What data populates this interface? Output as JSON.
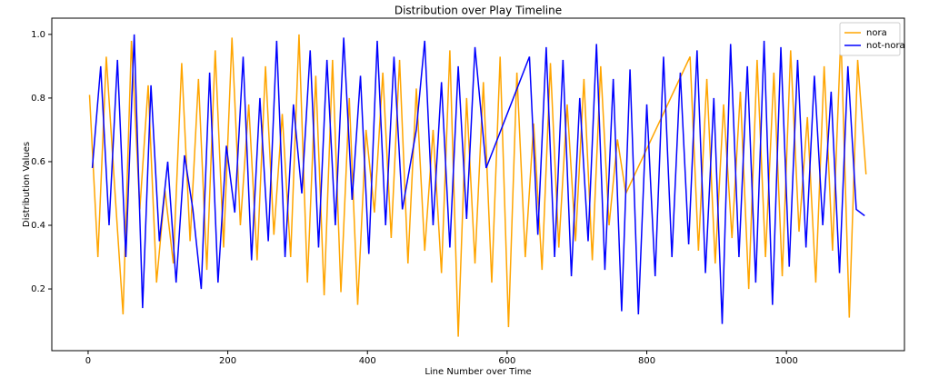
{
  "chart_data": {
    "type": "line",
    "title": "Distribution over Play Timeline",
    "x_label": "Line Number over Time",
    "y_label": "Distribution Values",
    "xlim": [
      -52,
      1169
    ],
    "ylim": [
      0.006,
      1.051
    ],
    "xticks": [
      0,
      200,
      400,
      600,
      800,
      1000
    ],
    "yticks": [
      0.2,
      0.4,
      0.6,
      0.8,
      {
        "value": 1,
        "label": "1.0"
      }
    ],
    "legend": "upper right",
    "series": [
      {
        "name": "nora",
        "color": "#ffa500",
        "x": [
          2,
          14,
          26,
          38,
          50,
          62,
          74,
          86,
          98,
          110,
          122,
          134,
          146,
          158,
          170,
          182,
          194,
          206,
          218,
          230,
          242,
          254,
          266,
          278,
          290,
          302,
          314,
          326,
          338,
          350,
          362,
          374,
          386,
          398,
          410,
          422,
          434,
          446,
          458,
          470,
          482,
          494,
          506,
          518,
          530,
          542,
          554,
          566,
          578,
          590,
          602,
          614,
          626,
          638,
          650,
          662,
          674,
          686,
          698,
          710,
          722,
          734,
          746,
          758,
          770,
          862,
          874,
          886,
          898,
          910,
          922,
          934,
          946,
          958,
          970,
          982,
          994,
          1006,
          1018,
          1030,
          1042,
          1054,
          1066,
          1078,
          1090,
          1102,
          1114
        ],
        "values": [
          0.81,
          0.3,
          0.93,
          0.52,
          0.12,
          0.98,
          0.45,
          0.84,
          0.22,
          0.51,
          0.28,
          0.91,
          0.35,
          0.86,
          0.26,
          0.95,
          0.33,
          0.99,
          0.4,
          0.78,
          0.29,
          0.9,
          0.37,
          0.75,
          0.3,
          1.0,
          0.22,
          0.87,
          0.18,
          0.92,
          0.19,
          0.8,
          0.15,
          0.7,
          0.44,
          0.88,
          0.36,
          0.92,
          0.28,
          0.83,
          0.32,
          0.7,
          0.25,
          0.95,
          0.05,
          0.8,
          0.28,
          0.85,
          0.22,
          0.93,
          0.08,
          0.88,
          0.3,
          0.72,
          0.26,
          0.91,
          0.33,
          0.78,
          0.35,
          0.86,
          0.29,
          0.9,
          0.4,
          0.67,
          0.5,
          0.93,
          0.32,
          0.86,
          0.28,
          0.78,
          0.36,
          0.82,
          0.2,
          0.92,
          0.3,
          0.88,
          0.24,
          0.95,
          0.38,
          0.74,
          0.22,
          0.9,
          0.32,
          1.0,
          0.11,
          0.92,
          0.56
        ]
      },
      {
        "name": "not-nora",
        "color": "#0000ff",
        "x": [
          6,
          18,
          30,
          42,
          54,
          66,
          78,
          90,
          102,
          114,
          126,
          138,
          150,
          162,
          174,
          186,
          198,
          210,
          222,
          234,
          246,
          258,
          270,
          282,
          294,
          306,
          318,
          330,
          342,
          354,
          366,
          378,
          390,
          402,
          414,
          426,
          438,
          450,
          470,
          482,
          494,
          506,
          518,
          530,
          542,
          554,
          570,
          632,
          644,
          656,
          668,
          680,
          692,
          704,
          716,
          728,
          740,
          752,
          764,
          776,
          788,
          800,
          812,
          824,
          836,
          848,
          860,
          872,
          884,
          896,
          908,
          920,
          932,
          944,
          956,
          968,
          980,
          992,
          1004,
          1016,
          1028,
          1040,
          1052,
          1064,
          1076,
          1088,
          1100,
          1112
        ],
        "values": [
          0.58,
          0.9,
          0.4,
          0.92,
          0.3,
          1.0,
          0.14,
          0.84,
          0.35,
          0.6,
          0.22,
          0.62,
          0.45,
          0.2,
          0.88,
          0.22,
          0.65,
          0.44,
          0.93,
          0.29,
          0.8,
          0.35,
          0.98,
          0.3,
          0.78,
          0.5,
          0.95,
          0.33,
          0.92,
          0.4,
          0.99,
          0.48,
          0.87,
          0.31,
          0.98,
          0.4,
          0.93,
          0.45,
          0.7,
          0.98,
          0.4,
          0.85,
          0.33,
          0.9,
          0.42,
          0.96,
          0.58,
          0.93,
          0.37,
          0.96,
          0.3,
          0.92,
          0.24,
          0.8,
          0.35,
          0.97,
          0.26,
          0.86,
          0.13,
          0.89,
          0.12,
          0.78,
          0.24,
          0.93,
          0.3,
          0.88,
          0.34,
          0.95,
          0.25,
          0.8,
          0.09,
          0.97,
          0.3,
          0.9,
          0.22,
          0.98,
          0.15,
          0.96,
          0.27,
          0.92,
          0.33,
          0.87,
          0.4,
          0.82,
          0.25,
          0.9,
          0.45,
          0.43
        ]
      }
    ]
  }
}
